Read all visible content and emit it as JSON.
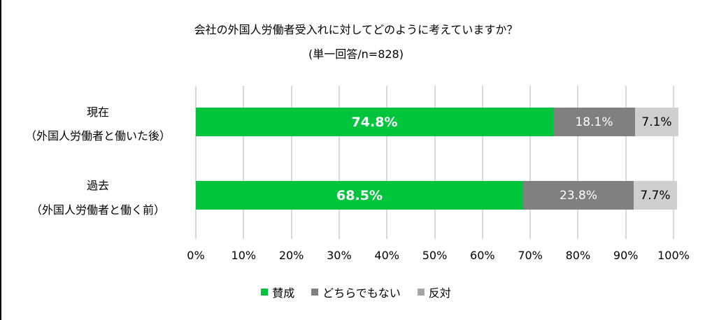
{
  "chart_data": {
    "type": "bar",
    "orientation": "horizontal",
    "stacked": true,
    "stacked_percent": true,
    "title": "会社の外国人労働者受入れに対してどのように考えていますか？",
    "subtitle": "(単一回答/n=828)",
    "categories": [
      {
        "line1": "現在",
        "line2": "（外国人労働者と働いた後）"
      },
      {
        "line1": "過去",
        "line2": "（外国人労働者と働く前）"
      }
    ],
    "series": [
      {
        "name": "賛成",
        "color": "#00c43c",
        "values": [
          74.8,
          68.5
        ],
        "labels": [
          "74.8%",
          "68.5%"
        ]
      },
      {
        "name": "どちらでもない",
        "color": "#808080",
        "values": [
          18.1,
          23.8
        ],
        "labels": [
          "18.1%",
          "23.8%"
        ]
      },
      {
        "name": "反対",
        "color": "#d0cece",
        "legend_color": "#a6a6a6",
        "values": [
          7.1,
          7.7
        ],
        "labels": [
          "7.1%",
          "7.7%"
        ]
      }
    ],
    "xlabel": "",
    "ylabel": "",
    "xlim": [
      0,
      100
    ],
    "x_ticks": [
      "0%",
      "10%",
      "20%",
      "30%",
      "40%",
      "50%",
      "60%",
      "70%",
      "80%",
      "90%",
      "100%"
    ],
    "grid": true,
    "legend_position": "bottom"
  }
}
